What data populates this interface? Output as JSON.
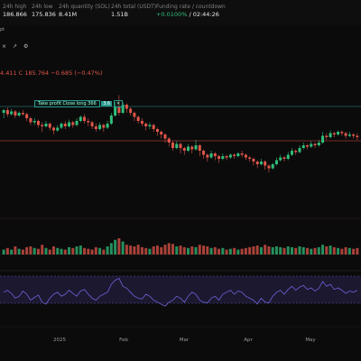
{
  "stats": [
    {
      "label": "24h high",
      "value": "186.866",
      "x": 3,
      "green": false
    },
    {
      "label": "24h low",
      "value": "175.836",
      "x": 35,
      "green": false
    },
    {
      "label": "24h quantity (SOL)",
      "value": "8.41M",
      "x": 65,
      "green": false
    },
    {
      "label": "24h total (USDT)",
      "value": "1.51B",
      "x": 123,
      "green": false
    },
    {
      "label": "Funding rate / countdown",
      "value_rate": "+0.0100%",
      "value_countdown": " / 02:44:26",
      "x": 173,
      "green": true
    }
  ],
  "subline": "pt",
  "toolbar": {
    "icons": [
      "x-icon",
      "arrow-icon",
      "settings-icon"
    ]
  },
  "ohlc": "4.411  C 185.764  −0.685 (−0.47%)",
  "order_tag": {
    "label": "Take profit Close long 366",
    "qty": "3.6",
    "close": "✕"
  },
  "colors": {
    "up": "#2fbf7a",
    "down": "#e0564a",
    "rsi": "#6d63d9"
  },
  "chart_data": {
    "type": "candlestick",
    "xlabel": "",
    "ylabel": "",
    "x_ticks": [
      "2025",
      "Feb",
      "Mar",
      "Apr",
      "May"
    ],
    "candles": [
      [
        0.8,
        0.82,
        0.76,
        0.83
      ],
      [
        0.82,
        0.79,
        0.77,
        0.84
      ],
      [
        0.79,
        0.81,
        0.78,
        0.83
      ],
      [
        0.81,
        0.78,
        0.76,
        0.82
      ],
      [
        0.78,
        0.8,
        0.77,
        0.81
      ],
      [
        0.8,
        0.79,
        0.78,
        0.82
      ],
      [
        0.79,
        0.76,
        0.74,
        0.8
      ],
      [
        0.76,
        0.73,
        0.71,
        0.77
      ],
      [
        0.73,
        0.74,
        0.71,
        0.76
      ],
      [
        0.74,
        0.71,
        0.69,
        0.75
      ],
      [
        0.71,
        0.7,
        0.66,
        0.73
      ],
      [
        0.7,
        0.72,
        0.69,
        0.74
      ],
      [
        0.72,
        0.69,
        0.67,
        0.73
      ],
      [
        0.69,
        0.67,
        0.64,
        0.7
      ],
      [
        0.67,
        0.69,
        0.66,
        0.71
      ],
      [
        0.69,
        0.72,
        0.68,
        0.73
      ],
      [
        0.72,
        0.7,
        0.68,
        0.74
      ],
      [
        0.7,
        0.73,
        0.69,
        0.75
      ],
      [
        0.73,
        0.71,
        0.69,
        0.74
      ],
      [
        0.71,
        0.74,
        0.7,
        0.76
      ],
      [
        0.74,
        0.77,
        0.73,
        0.78
      ],
      [
        0.77,
        0.74,
        0.72,
        0.79
      ],
      [
        0.74,
        0.73,
        0.7,
        0.76
      ],
      [
        0.73,
        0.7,
        0.68,
        0.74
      ],
      [
        0.7,
        0.68,
        0.66,
        0.72
      ],
      [
        0.68,
        0.71,
        0.67,
        0.73
      ],
      [
        0.71,
        0.69,
        0.66,
        0.72
      ],
      [
        0.69,
        0.72,
        0.68,
        0.74
      ],
      [
        0.72,
        0.78,
        0.71,
        0.8
      ],
      [
        0.78,
        0.84,
        0.77,
        0.88
      ],
      [
        0.84,
        0.8,
        0.78,
        0.93
      ],
      [
        0.8,
        0.86,
        0.79,
        0.88
      ],
      [
        0.86,
        0.83,
        0.8,
        0.87
      ],
      [
        0.83,
        0.8,
        0.78,
        0.84
      ],
      [
        0.8,
        0.77,
        0.74,
        0.81
      ],
      [
        0.77,
        0.74,
        0.72,
        0.78
      ],
      [
        0.74,
        0.72,
        0.7,
        0.76
      ],
      [
        0.72,
        0.7,
        0.67,
        0.73
      ],
      [
        0.7,
        0.71,
        0.68,
        0.73
      ],
      [
        0.71,
        0.68,
        0.66,
        0.72
      ],
      [
        0.68,
        0.66,
        0.63,
        0.69
      ],
      [
        0.66,
        0.64,
        0.61,
        0.67
      ],
      [
        0.64,
        0.61,
        0.58,
        0.65
      ],
      [
        0.61,
        0.58,
        0.55,
        0.62
      ],
      [
        0.58,
        0.54,
        0.52,
        0.59
      ],
      [
        0.54,
        0.57,
        0.53,
        0.59
      ],
      [
        0.57,
        0.54,
        0.5,
        0.58
      ],
      [
        0.54,
        0.52,
        0.49,
        0.55
      ],
      [
        0.52,
        0.55,
        0.51,
        0.57
      ],
      [
        0.55,
        0.53,
        0.5,
        0.56
      ],
      [
        0.53,
        0.56,
        0.52,
        0.6
      ],
      [
        0.56,
        0.52,
        0.48,
        0.57
      ],
      [
        0.52,
        0.49,
        0.46,
        0.53
      ],
      [
        0.49,
        0.47,
        0.44,
        0.5
      ],
      [
        0.47,
        0.5,
        0.46,
        0.52
      ],
      [
        0.5,
        0.48,
        0.45,
        0.51
      ],
      [
        0.48,
        0.46,
        0.43,
        0.49
      ],
      [
        0.46,
        0.48,
        0.45,
        0.5
      ],
      [
        0.48,
        0.47,
        0.45,
        0.49
      ],
      [
        0.47,
        0.49,
        0.46,
        0.5
      ],
      [
        0.49,
        0.48,
        0.46,
        0.5
      ],
      [
        0.48,
        0.5,
        0.47,
        0.51
      ],
      [
        0.5,
        0.49,
        0.47,
        0.52
      ],
      [
        0.49,
        0.47,
        0.45,
        0.5
      ],
      [
        0.47,
        0.46,
        0.44,
        0.48
      ],
      [
        0.46,
        0.44,
        0.41,
        0.47
      ],
      [
        0.44,
        0.42,
        0.39,
        0.45
      ],
      [
        0.42,
        0.44,
        0.41,
        0.46
      ],
      [
        0.44,
        0.41,
        0.38,
        0.45
      ],
      [
        0.41,
        0.39,
        0.36,
        0.42
      ],
      [
        0.39,
        0.42,
        0.38,
        0.43
      ],
      [
        0.42,
        0.45,
        0.41,
        0.47
      ],
      [
        0.45,
        0.47,
        0.44,
        0.49
      ],
      [
        0.47,
        0.46,
        0.44,
        0.48
      ],
      [
        0.46,
        0.49,
        0.45,
        0.51
      ],
      [
        0.49,
        0.52,
        0.48,
        0.54
      ],
      [
        0.52,
        0.51,
        0.49,
        0.53
      ],
      [
        0.51,
        0.54,
        0.5,
        0.56
      ],
      [
        0.54,
        0.56,
        0.53,
        0.58
      ],
      [
        0.56,
        0.55,
        0.53,
        0.57
      ],
      [
        0.55,
        0.57,
        0.54,
        0.59
      ],
      [
        0.57,
        0.56,
        0.54,
        0.58
      ],
      [
        0.56,
        0.58,
        0.55,
        0.6
      ],
      [
        0.58,
        0.63,
        0.57,
        0.66
      ],
      [
        0.63,
        0.62,
        0.6,
        0.65
      ],
      [
        0.62,
        0.65,
        0.61,
        0.67
      ],
      [
        0.65,
        0.64,
        0.62,
        0.66
      ],
      [
        0.64,
        0.66,
        0.63,
        0.67
      ],
      [
        0.66,
        0.65,
        0.63,
        0.67
      ],
      [
        0.65,
        0.63,
        0.61,
        0.66
      ],
      [
        0.63,
        0.64,
        0.62,
        0.66
      ],
      [
        0.64,
        0.63,
        0.61,
        0.65
      ],
      [
        0.63,
        0.62,
        0.6,
        0.65
      ]
    ],
    "volumes": [
      0.3,
      0.4,
      0.3,
      0.5,
      0.35,
      0.3,
      0.45,
      0.5,
      0.4,
      0.35,
      0.6,
      0.4,
      0.3,
      0.5,
      0.4,
      0.35,
      0.3,
      0.45,
      0.4,
      0.5,
      0.55,
      0.4,
      0.35,
      0.3,
      0.45,
      0.4,
      0.3,
      0.5,
      0.7,
      0.9,
      1.0,
      0.8,
      0.6,
      0.55,
      0.5,
      0.6,
      0.45,
      0.4,
      0.35,
      0.5,
      0.55,
      0.45,
      0.6,
      0.7,
      0.65,
      0.5,
      0.55,
      0.45,
      0.4,
      0.5,
      0.45,
      0.6,
      0.55,
      0.5,
      0.4,
      0.45,
      0.35,
      0.4,
      0.3,
      0.35,
      0.4,
      0.3,
      0.35,
      0.4,
      0.45,
      0.5,
      0.55,
      0.45,
      0.6,
      0.5,
      0.45,
      0.5,
      0.45,
      0.4,
      0.5,
      0.45,
      0.4,
      0.5,
      0.45,
      0.4,
      0.35,
      0.4,
      0.45,
      0.6,
      0.5,
      0.55,
      0.45,
      0.4,
      0.35,
      0.45,
      0.4,
      0.35,
      0.4
    ],
    "rsi": [
      0.55,
      0.6,
      0.52,
      0.4,
      0.45,
      0.58,
      0.5,
      0.35,
      0.42,
      0.48,
      0.3,
      0.25,
      0.4,
      0.5,
      0.55,
      0.45,
      0.5,
      0.6,
      0.52,
      0.45,
      0.58,
      0.62,
      0.5,
      0.4,
      0.35,
      0.45,
      0.5,
      0.55,
      0.75,
      0.85,
      0.9,
      0.7,
      0.65,
      0.55,
      0.45,
      0.4,
      0.38,
      0.5,
      0.45,
      0.35,
      0.3,
      0.25,
      0.2,
      0.3,
      0.35,
      0.45,
      0.4,
      0.3,
      0.45,
      0.55,
      0.5,
      0.35,
      0.3,
      0.28,
      0.4,
      0.45,
      0.35,
      0.5,
      0.55,
      0.6,
      0.5,
      0.58,
      0.55,
      0.45,
      0.4,
      0.35,
      0.25,
      0.4,
      0.3,
      0.28,
      0.45,
      0.55,
      0.6,
      0.5,
      0.62,
      0.7,
      0.6,
      0.68,
      0.72,
      0.62,
      0.66,
      0.58,
      0.65,
      0.82,
      0.7,
      0.75,
      0.62,
      0.66,
      0.6,
      0.52,
      0.58,
      0.55,
      0.6
    ]
  }
}
